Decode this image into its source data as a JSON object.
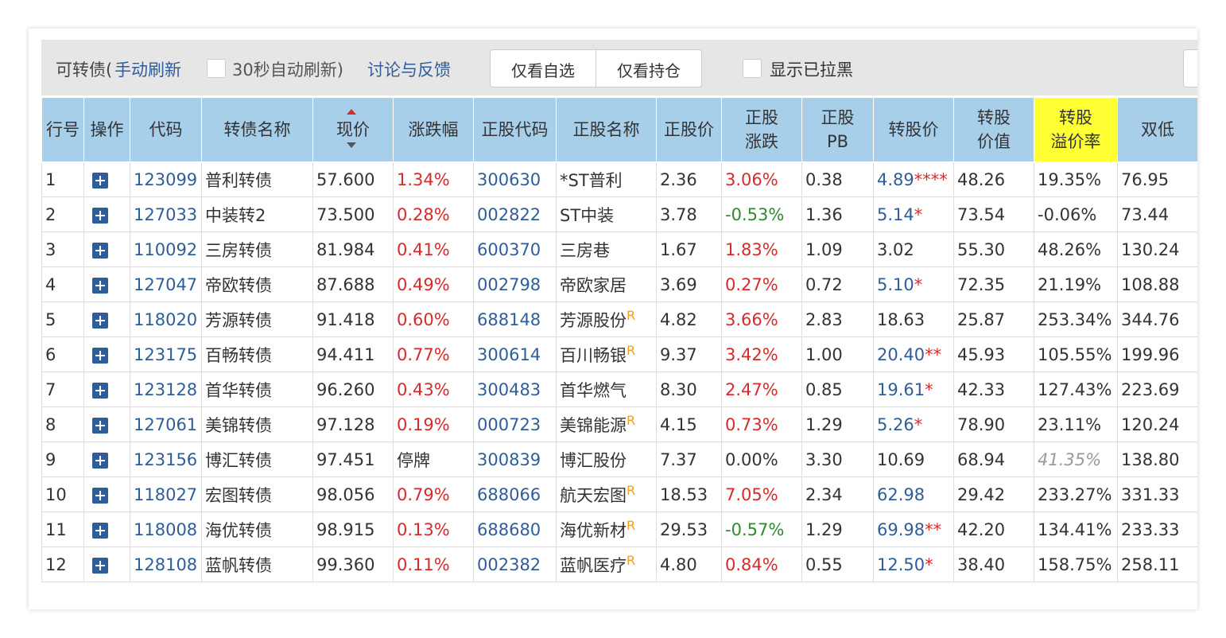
{
  "toolbar": {
    "title": "可转债(",
    "manual_refresh": "手动刷新",
    "auto_refresh": "30秒自动刷新)",
    "feedback": "讨论与反馈",
    "buttons": [
      "仅看自选",
      "仅看持仓"
    ],
    "show_blacklisted": "显示已拉黑"
  },
  "table": {
    "header": [
      "行号",
      "操作",
      "代码",
      "转债名称",
      "现价",
      "涨跌幅",
      "正股代码",
      "正股名称",
      "正股价",
      [
        "正股",
        "涨跌"
      ],
      [
        "正股",
        "PB"
      ],
      "转股价",
      [
        "转股",
        "价值"
      ],
      [
        "转股",
        "溢价率"
      ],
      "双低"
    ],
    "sorted_column": 4,
    "highlight_column": 13,
    "rows": [
      {
        "no": "1",
        "code": "123099",
        "name": "普利转债",
        "price": "57.600",
        "chg": "1.34%",
        "stock_code": "300630",
        "stock_name": "*ST普利",
        "stock_price": "2.36",
        "stock_chg": "3.06%",
        "pb": "0.38",
        "conv_price": "4.89",
        "conv_mark": "****",
        "conv_link": true,
        "conv_value": "48.26",
        "premium": "19.35%",
        "dual_low": "76.95"
      },
      {
        "no": "2",
        "code": "127033",
        "name": "中装转2",
        "price": "73.500",
        "chg": "0.28%",
        "stock_code": "002822",
        "stock_name": "ST中装",
        "stock_price": "3.78",
        "stock_chg": "-0.53%",
        "pb": "1.36",
        "conv_price": "5.14",
        "conv_mark": "*",
        "conv_link": true,
        "conv_value": "73.54",
        "premium": "-0.06%",
        "dual_low": "73.44"
      },
      {
        "no": "3",
        "code": "110092",
        "name": "三房转债",
        "price": "81.984",
        "chg": "0.41%",
        "stock_code": "600370",
        "stock_name": "三房巷",
        "stock_price": "1.67",
        "stock_chg": "1.83%",
        "pb": "1.09",
        "conv_price": "3.02",
        "conv_link": false,
        "conv_value": "55.30",
        "premium": "48.26%",
        "dual_low": "130.24"
      },
      {
        "no": "4",
        "code": "127047",
        "name": "帝欧转债",
        "price": "87.688",
        "chg": "0.49%",
        "stock_code": "002798",
        "stock_name": "帝欧家居",
        "stock_price": "3.69",
        "stock_chg": "0.27%",
        "pb": "0.72",
        "conv_price": "5.10",
        "conv_mark": "*",
        "conv_link": true,
        "conv_value": "72.35",
        "premium": "21.19%",
        "dual_low": "108.88"
      },
      {
        "no": "5",
        "code": "118020",
        "name": "芳源转债",
        "price": "91.418",
        "chg": "0.60%",
        "stock_code": "688148",
        "stock_name": "芳源股份",
        "flag": "R",
        "stock_price": "4.82",
        "stock_chg": "3.66%",
        "pb": "2.83",
        "conv_price": "18.63",
        "conv_link": false,
        "conv_value": "25.87",
        "premium": "253.34%",
        "dual_low": "344.76"
      },
      {
        "no": "6",
        "code": "123175",
        "name": "百畅转债",
        "price": "94.411",
        "chg": "0.77%",
        "stock_code": "300614",
        "stock_name": "百川畅银",
        "flag": "R",
        "stock_price": "9.37",
        "stock_chg": "3.42%",
        "pb": "1.00",
        "conv_price": "20.40",
        "conv_mark": "**",
        "conv_link": true,
        "conv_value": "45.93",
        "premium": "105.55%",
        "dual_low": "199.96"
      },
      {
        "no": "7",
        "code": "123128",
        "name": "首华转债",
        "price": "96.260",
        "chg": "0.43%",
        "stock_code": "300483",
        "stock_name": "首华燃气",
        "stock_price": "8.30",
        "stock_chg": "2.47%",
        "pb": "0.85",
        "conv_price": "19.61",
        "conv_mark": "*",
        "conv_link": true,
        "conv_value": "42.33",
        "premium": "127.43%",
        "dual_low": "223.69"
      },
      {
        "no": "8",
        "code": "127061",
        "name": "美锦转债",
        "price": "97.128",
        "chg": "0.19%",
        "stock_code": "000723",
        "stock_name": "美锦能源",
        "flag": "R",
        "stock_price": "4.15",
        "stock_chg": "0.73%",
        "pb": "1.29",
        "conv_price": "5.26",
        "conv_mark": "*",
        "conv_link": true,
        "conv_value": "78.90",
        "premium": "23.11%",
        "dual_low": "120.24"
      },
      {
        "no": "9",
        "code": "123156",
        "name": "博汇转债",
        "price": "97.451",
        "chg": "停牌",
        "stock_code": "300839",
        "stock_name": "博汇股份",
        "stock_price": "7.37",
        "stock_chg": "0.00%",
        "pb": "3.30",
        "conv_price": "10.69",
        "conv_link": false,
        "conv_value": "68.94",
        "premium": "41.35%",
        "premium_muted": true,
        "dual_low": "138.80"
      },
      {
        "no": "10",
        "code": "118027",
        "name": "宏图转债",
        "price": "98.056",
        "chg": "0.79%",
        "stock_code": "688066",
        "stock_name": "航天宏图",
        "flag": "R",
        "stock_price": "18.53",
        "stock_chg": "7.05%",
        "pb": "2.34",
        "conv_price": "62.98",
        "conv_link": true,
        "conv_value": "29.42",
        "premium": "233.27%",
        "dual_low": "331.33"
      },
      {
        "no": "11",
        "code": "118008",
        "name": "海优转债",
        "price": "98.915",
        "chg": "0.13%",
        "stock_code": "688680",
        "stock_name": "海优新材",
        "flag": "R",
        "stock_price": "29.53",
        "stock_chg": "-0.57%",
        "pb": "1.29",
        "conv_price": "69.98",
        "conv_mark": "**",
        "conv_link": true,
        "conv_value": "42.20",
        "premium": "134.41%",
        "dual_low": "233.33"
      },
      {
        "no": "12",
        "code": "128108",
        "name": "蓝帆转债",
        "price": "99.360",
        "chg": "0.11%",
        "stock_code": "002382",
        "stock_name": "蓝帆医疗",
        "flag": "R",
        "stock_price": "4.80",
        "stock_chg": "0.84%",
        "pb": "0.55",
        "conv_price": "12.50",
        "conv_mark": "*",
        "conv_link": true,
        "conv_value": "38.40",
        "premium": "158.75%",
        "dual_low": "258.11"
      }
    ]
  }
}
